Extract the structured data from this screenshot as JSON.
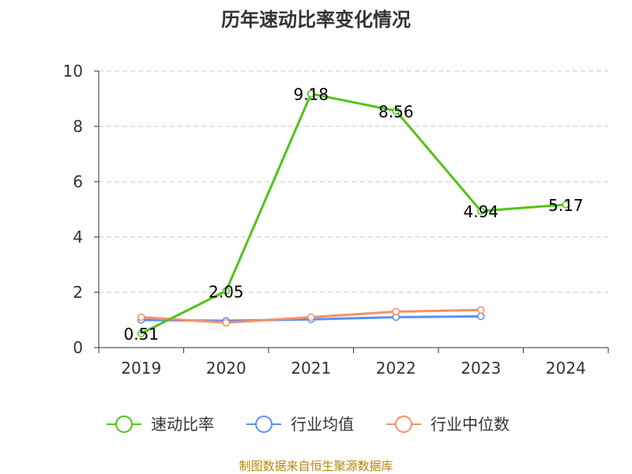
{
  "chart_data": {
    "type": "line",
    "title": "历年速动比率变化情况",
    "categories": [
      "2019",
      "2020",
      "2021",
      "2022",
      "2023",
      "2024"
    ],
    "ylim": [
      0,
      10
    ],
    "yticks": [
      0,
      2,
      4,
      6,
      8,
      10
    ],
    "grid": true,
    "legend_position": "bottom",
    "series": [
      {
        "name": "速动比率",
        "color": "#52c41a",
        "values": [
          0.51,
          2.05,
          9.18,
          8.56,
          4.94,
          5.17
        ],
        "labels": [
          "0.51",
          "2.05",
          "9.18",
          "8.56",
          "4.94",
          "5.17"
        ]
      },
      {
        "name": "行业均值",
        "color": "#5b8ff9",
        "values": [
          1.0,
          0.97,
          1.02,
          1.1,
          1.13,
          null
        ]
      },
      {
        "name": "行业中位数",
        "color": "#f6906a",
        "values": [
          1.1,
          0.9,
          1.1,
          1.3,
          1.36,
          null
        ]
      }
    ],
    "source": "制图数据来自恒生聚源数据库"
  }
}
